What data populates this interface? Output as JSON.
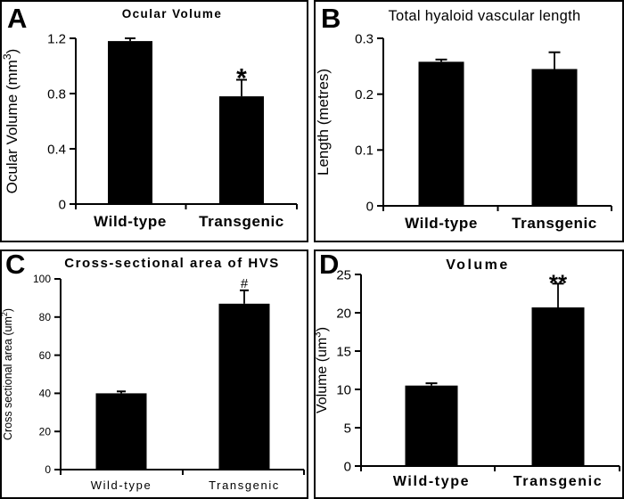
{
  "figure": {
    "background": "#ffffff",
    "ink": "#000000",
    "bar_color": "#000000",
    "group_labels": [
      "Wild-type",
      "Transgenic"
    ]
  },
  "chart_data": [
    {
      "type": "bar",
      "panel": "A",
      "title": "Ocular Volume",
      "ylabel": "Ocular Volume (mm³)",
      "categories": [
        "Wild-type",
        "Transgenic"
      ],
      "values": [
        1.18,
        0.78
      ],
      "errors": [
        0.02,
        0.12
      ],
      "annotations": [
        "",
        "*"
      ],
      "ylim": [
        0,
        1.2
      ],
      "yticks": [
        0,
        0.4,
        0.8,
        1.2
      ],
      "ytick_labels": [
        "0",
        "0.4",
        "0.8",
        "1.2"
      ],
      "grid": false,
      "legend": null
    },
    {
      "type": "bar",
      "panel": "B",
      "title": "Total hyaloid vascular length",
      "ylabel": "Length (metres)",
      "categories": [
        "Wild-type",
        "Transgenic"
      ],
      "values": [
        0.258,
        0.245
      ],
      "errors": [
        0.004,
        0.03
      ],
      "annotations": [
        "",
        ""
      ],
      "ylim": [
        0,
        0.3
      ],
      "yticks": [
        0,
        0.1,
        0.2,
        0.3
      ],
      "ytick_labels": [
        "0",
        "0.1",
        "0.2",
        "0.3"
      ],
      "grid": false,
      "legend": null
    },
    {
      "type": "bar",
      "panel": "C",
      "title": "Cross-sectional area of HVS",
      "ylabel": "Cross sectional area (um²)",
      "categories": [
        "Wild-type",
        "Transgenic"
      ],
      "values": [
        40,
        87
      ],
      "errors": [
        1,
        7
      ],
      "annotations": [
        "",
        "#"
      ],
      "ylim": [
        0,
        100
      ],
      "yticks": [
        0,
        20,
        40,
        60,
        80,
        100
      ],
      "ytick_labels": [
        "0",
        "20",
        "40",
        "60",
        "80",
        "100"
      ],
      "grid": false,
      "legend": null
    },
    {
      "type": "bar",
      "panel": "D",
      "title": "Volume",
      "ylabel": "Volume (um³)",
      "categories": [
        "Wild-type",
        "Transgenic"
      ],
      "values": [
        10.5,
        20.7
      ],
      "errors": [
        0.3,
        3.1
      ],
      "annotations": [
        "",
        "**"
      ],
      "ylim": [
        0,
        25
      ],
      "yticks": [
        0,
        5,
        10,
        15,
        20,
        25
      ],
      "ytick_labels": [
        "0",
        "5",
        "10",
        "15",
        "20",
        "25"
      ],
      "grid": false,
      "legend": null
    }
  ]
}
